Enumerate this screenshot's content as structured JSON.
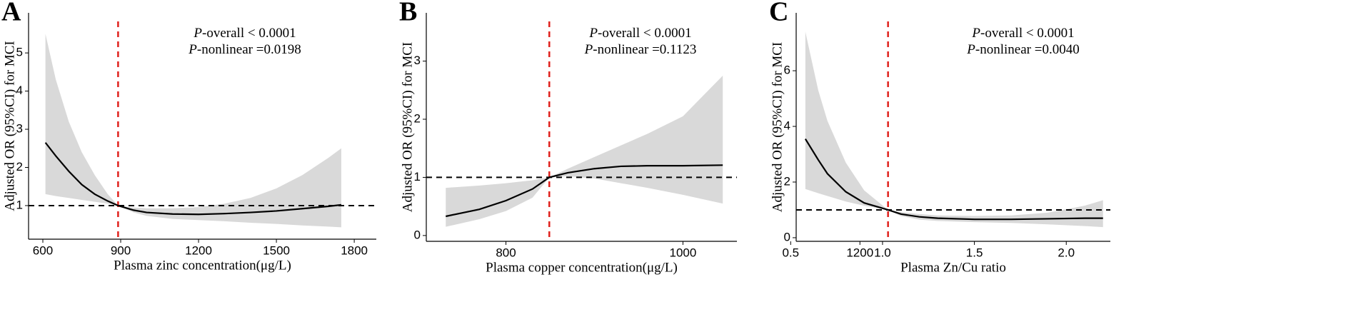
{
  "chart_data": [
    {
      "type": "line",
      "panel": "A",
      "xlabel": "Plasma zinc concentration(μg/L)",
      "ylabel": "Adjusted OR (95%CI) for MCI",
      "annotations": [
        [
          "P",
          "-overall < 0.0001"
        ],
        [
          "P",
          "-nonlinear =0.0198"
        ]
      ],
      "x": [
        610,
        650,
        700,
        750,
        800,
        850,
        890,
        950,
        1000,
        1100,
        1200,
        1300,
        1400,
        1500,
        1600,
        1700,
        1750
      ],
      "values": [
        2.65,
        2.3,
        1.9,
        1.55,
        1.3,
        1.12,
        1.0,
        0.88,
        0.82,
        0.78,
        0.77,
        0.79,
        0.82,
        0.86,
        0.92,
        0.98,
        1.02
      ],
      "ci_upper": [
        5.5,
        4.3,
        3.2,
        2.4,
        1.8,
        1.3,
        1.0,
        0.95,
        0.93,
        0.93,
        0.96,
        1.05,
        1.2,
        1.45,
        1.8,
        2.25,
        2.5
      ],
      "ci_lower": [
        1.3,
        1.25,
        1.2,
        1.15,
        1.1,
        1.05,
        1.0,
        0.82,
        0.73,
        0.65,
        0.62,
        0.59,
        0.55,
        0.52,
        0.48,
        0.45,
        0.43
      ],
      "hline": 1,
      "vline": 890,
      "color": "#000000",
      "band_color": "#d9d9d9",
      "vline_color": "#e0211c",
      "xlim": [
        545,
        1885
      ],
      "ylim": [
        0.12,
        6.05
      ],
      "xticks": [
        600,
        900,
        1200,
        1500,
        1800
      ],
      "yticks": [
        1,
        2,
        3,
        4,
        5
      ]
    },
    {
      "type": "line",
      "panel": "B",
      "xlabel": "Plasma copper concentration(μg/L)",
      "ylabel": "Adjusted OR (95%CI) for MCI",
      "annotations": [
        [
          "P",
          "-overall < 0.0001"
        ],
        [
          "P",
          "-nonlinear =0.1123"
        ]
      ],
      "x": [
        732,
        770,
        800,
        830,
        849,
        870,
        900,
        930,
        960,
        1000,
        1045
      ],
      "values": [
        0.33,
        0.45,
        0.6,
        0.8,
        1.0,
        1.08,
        1.15,
        1.19,
        1.2,
        1.2,
        1.21
      ],
      "ci_upper": [
        0.82,
        0.86,
        0.9,
        0.95,
        1.0,
        1.15,
        1.35,
        1.55,
        1.75,
        2.05,
        2.75
      ],
      "ci_lower": [
        0.15,
        0.28,
        0.42,
        0.65,
        1.0,
        1.02,
        0.98,
        0.9,
        0.82,
        0.7,
        0.55
      ],
      "hline": 1,
      "vline": 849,
      "color": "#000000",
      "band_color": "#d9d9d9",
      "vline_color": "#e0211c",
      "xlim": [
        710,
        1061
      ],
      "ylim": [
        -0.1,
        3.83
      ],
      "xticks": [
        800,
        1000,
        1200
      ],
      "yticks": [
        0,
        1,
        2,
        3
      ]
    },
    {
      "type": "line",
      "panel": "C",
      "xlabel": "Plasma Zn/Cu ratio",
      "ylabel": "Adjusted OR (95%CI) for MCI",
      "annotations": [
        [
          "P",
          "-overall < 0.0001"
        ],
        [
          "P",
          "-nonlinear =0.0040"
        ]
      ],
      "x": [
        0.58,
        0.65,
        0.7,
        0.8,
        0.9,
        1.03,
        1.1,
        1.2,
        1.3,
        1.5,
        1.7,
        1.9,
        2.1,
        2.2
      ],
      "values": [
        3.55,
        2.8,
        2.3,
        1.65,
        1.25,
        1.0,
        0.85,
        0.75,
        0.7,
        0.66,
        0.66,
        0.68,
        0.7,
        0.7
      ],
      "ci_upper": [
        7.4,
        5.3,
        4.2,
        2.7,
        1.7,
        1.0,
        0.92,
        0.85,
        0.8,
        0.78,
        0.8,
        0.9,
        1.15,
        1.35
      ],
      "ci_lower": [
        1.75,
        1.6,
        1.5,
        1.3,
        1.15,
        1.0,
        0.78,
        0.65,
        0.6,
        0.56,
        0.53,
        0.48,
        0.42,
        0.38
      ],
      "hline": 1,
      "vline": 1.03,
      "color": "#000000",
      "band_color": "#d9d9d9",
      "vline_color": "#e0211c",
      "xlim": [
        0.53,
        2.24
      ],
      "ylim": [
        -0.13,
        8.08
      ],
      "xticks": [
        {
          "value": 0.5,
          "label": "0.5"
        },
        {
          "value": 1.0,
          "label": "1.0"
        },
        {
          "value": 1.5,
          "label": "1.5"
        },
        {
          "value": 2.0,
          "label": "2.0"
        }
      ],
      "yticks": [
        0,
        2,
        4,
        6
      ]
    }
  ]
}
